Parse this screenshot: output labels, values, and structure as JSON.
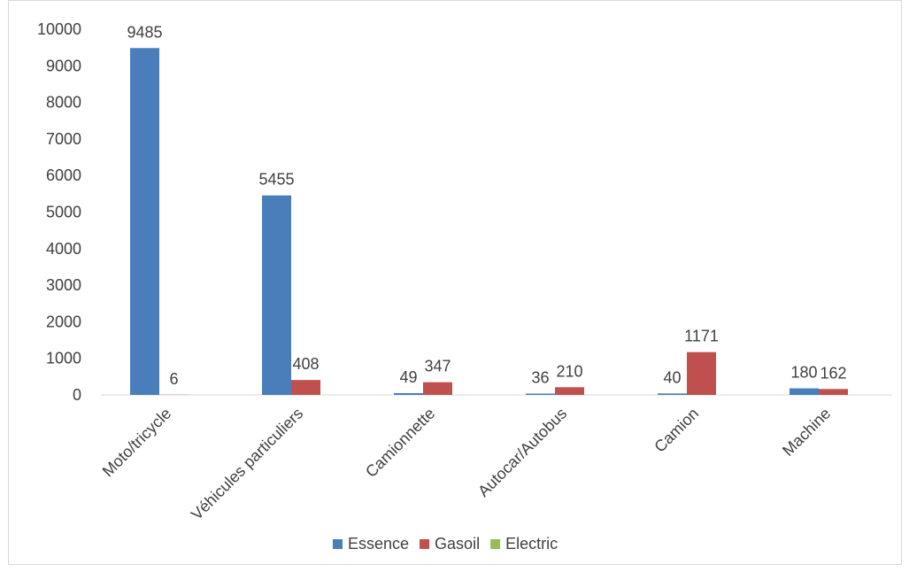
{
  "chart_data": {
    "type": "bar",
    "categories": [
      "Moto/tricycle",
      "Véhicules particuliers",
      "Camionnette",
      "Autocar/Autobus",
      "Camion",
      "Machine"
    ],
    "series": [
      {
        "name": "Essence",
        "color": "#4a7ebb",
        "values": [
          9485,
          5455,
          49,
          36,
          40,
          180
        ],
        "labels": [
          "9485",
          "5455",
          "49",
          "36",
          "40",
          "180"
        ]
      },
      {
        "name": "Gasoil",
        "color": "#c0504d",
        "values": [
          6,
          408,
          347,
          210,
          1171,
          162
        ],
        "labels": [
          "6",
          "408",
          "347",
          "210",
          "1171",
          "162"
        ]
      },
      {
        "name": "Electric",
        "color": "#9bbb59",
        "values": [
          0,
          0,
          0,
          0,
          0,
          0
        ],
        "labels": [
          "",
          "",
          "",
          "",
          "",
          ""
        ]
      }
    ],
    "ylim": [
      0,
      10000
    ],
    "yticks": [
      "0",
      "1000",
      "2000",
      "3000",
      "4000",
      "5000",
      "6000",
      "7000",
      "8000",
      "9000",
      "10000"
    ],
    "title": "",
    "xlabel": "",
    "ylabel": "",
    "grid": false,
    "legend": "bottom"
  }
}
